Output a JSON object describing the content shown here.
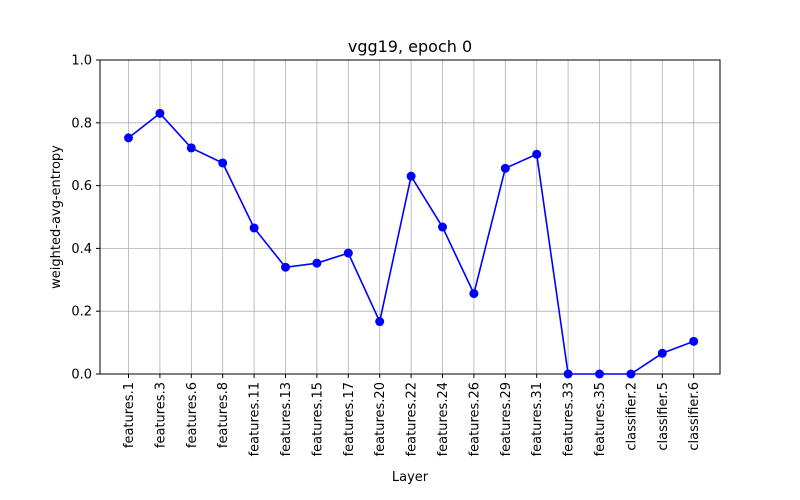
{
  "chart_data": {
    "type": "line",
    "title": "vgg19, epoch 0",
    "xlabel": "Layer",
    "ylabel": "weighted-avg-entropy",
    "ylim": [
      0,
      1
    ],
    "yticks": [
      "0.0",
      "0.2",
      "0.4",
      "0.6",
      "0.8",
      "1.0"
    ],
    "grid": true,
    "line_color": "#0000ff",
    "categories": [
      "features.1",
      "features.3",
      "features.6",
      "features.8",
      "features.11",
      "features.13",
      "features.15",
      "features.17",
      "features.20",
      "features.22",
      "features.24",
      "features.26",
      "features.29",
      "features.31",
      "features.33",
      "features.35",
      "classifier.2",
      "classifier.5",
      "classifier.6"
    ],
    "values": [
      0.752,
      0.83,
      0.72,
      0.672,
      0.465,
      0.34,
      0.353,
      0.385,
      0.167,
      0.63,
      0.468,
      0.256,
      0.655,
      0.7,
      0.0,
      0.0,
      0.0,
      0.066,
      0.104
    ]
  }
}
